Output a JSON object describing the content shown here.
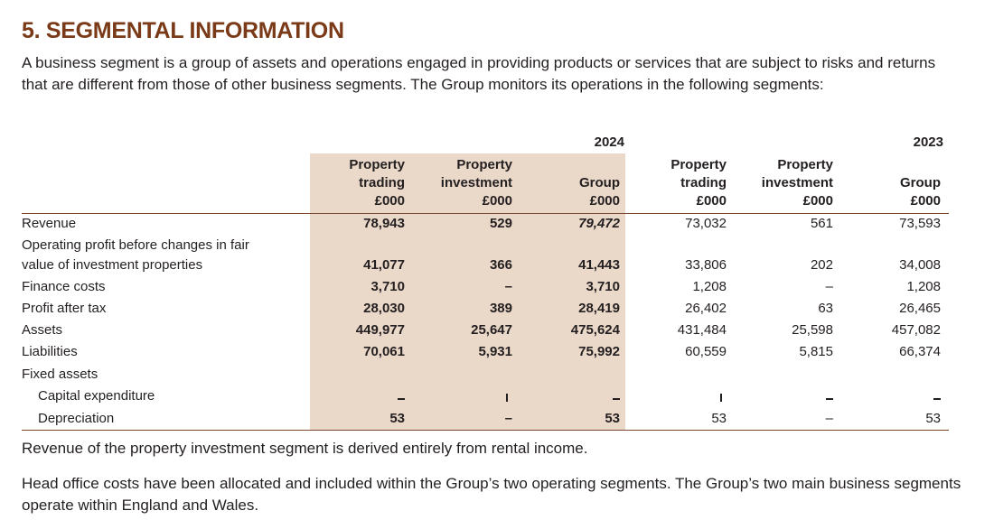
{
  "section": {
    "title": "5. SEGMENTAL INFORMATION",
    "intro": "A business segment is a group of assets and operations engaged in providing products or services that are subject to risks and returns that are different from those of other business segments. The Group monitors its operations in the following segments:"
  },
  "table": {
    "years": [
      "2024",
      "2023"
    ],
    "columns": [
      {
        "line1": "Property",
        "line2": "trading",
        "unit": "£000"
      },
      {
        "line1": "Property",
        "line2": "investment",
        "unit": "£000"
      },
      {
        "line1": "",
        "line2": "Group",
        "unit": "£000"
      },
      {
        "line1": "Property",
        "line2": "trading",
        "unit": "£000"
      },
      {
        "line1": "Property",
        "line2": "investment",
        "unit": "£000"
      },
      {
        "line1": "",
        "line2": "Group",
        "unit": "£000"
      }
    ],
    "rows": {
      "revenue": {
        "label": "Revenue",
        "values": [
          "78,943",
          "529",
          "79,472",
          "73,032",
          "561",
          "73,593"
        ]
      },
      "operating_profit": {
        "label_line1": "Operating profit before changes in fair",
        "label_line2": "value of investment properties",
        "values": [
          "41,077",
          "366",
          "41,443",
          "33,806",
          "202",
          "34,008"
        ]
      },
      "finance_costs": {
        "label": "Finance costs",
        "values": [
          "3,710",
          "–",
          "3,710",
          "1,208",
          "–",
          "1,208"
        ]
      },
      "profit_after_tax": {
        "label": "Profit after tax",
        "values": [
          "28,030",
          "389",
          "28,419",
          "26,402",
          "63",
          "26,465"
        ]
      },
      "assets": {
        "label": "Assets",
        "values": [
          "449,977",
          "25,647",
          "475,624",
          "431,484",
          "25,598",
          "457,082"
        ]
      },
      "liabilities": {
        "label": "Liabilities",
        "values": [
          "70,061",
          "5,931",
          "75,992",
          "60,559",
          "5,815",
          "66,374"
        ]
      },
      "fixed_assets": {
        "label": "Fixed assets"
      },
      "capital_expenditure": {
        "label": "Capital expenditure"
      },
      "depreciation": {
        "label": "Depreciation",
        "values": [
          "53",
          "–",
          "53",
          "53",
          "–",
          "53"
        ]
      }
    }
  },
  "notes": {
    "revenue_note": "Revenue of the property investment segment is derived entirely from rental income.",
    "head_office_note": "Head office costs have been allocated and included within the Group’s two operating segments. The Group’s two main business segments operate within England and Wales."
  },
  "colors": {
    "title": "#7a3a18",
    "shade": "#ead8c9",
    "rule": "#7a4a30",
    "text": "#231f20"
  }
}
